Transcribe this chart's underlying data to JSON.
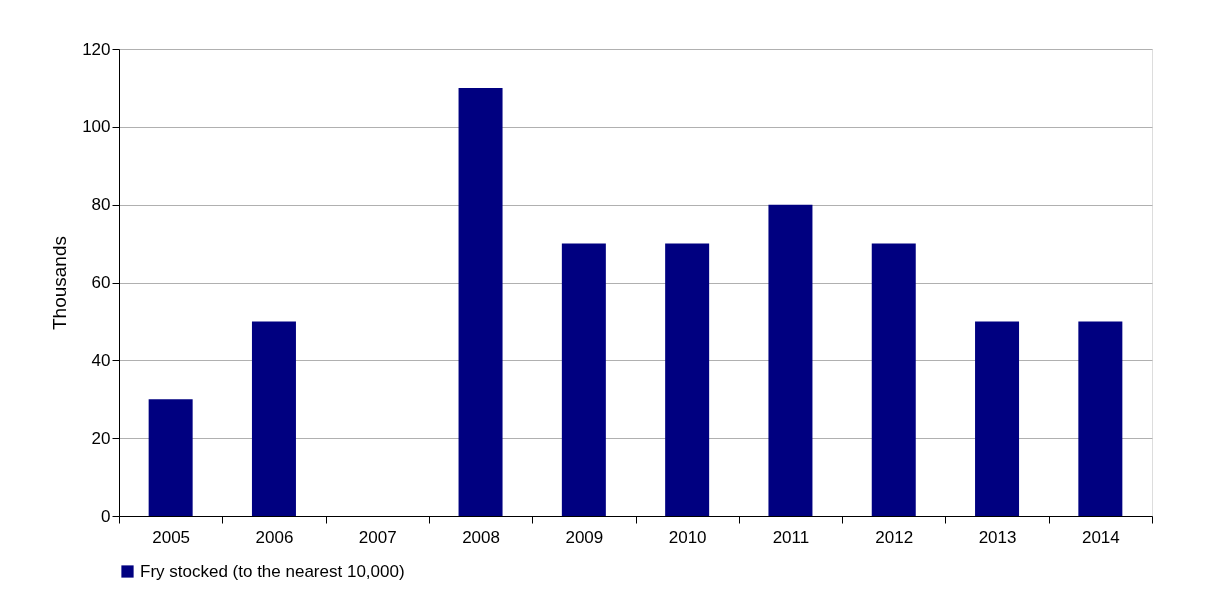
{
  "chart_data": {
    "type": "bar",
    "ylabel": "Thousands",
    "categories": [
      "2005",
      "2006",
      "2007",
      "2008",
      "2009",
      "2010",
      "2011",
      "2012",
      "2013",
      "2014"
    ],
    "series": [
      {
        "name": "Fry stocked (to the nearest 10,000)",
        "color": "#000080",
        "values": [
          30,
          50,
          null,
          110,
          70,
          70,
          80,
          70,
          50,
          50
        ]
      }
    ],
    "ylim": [
      0,
      120
    ],
    "yticks": [
      0,
      20,
      40,
      60,
      80,
      100,
      120
    ],
    "grid": "y",
    "legend": "bottom"
  }
}
